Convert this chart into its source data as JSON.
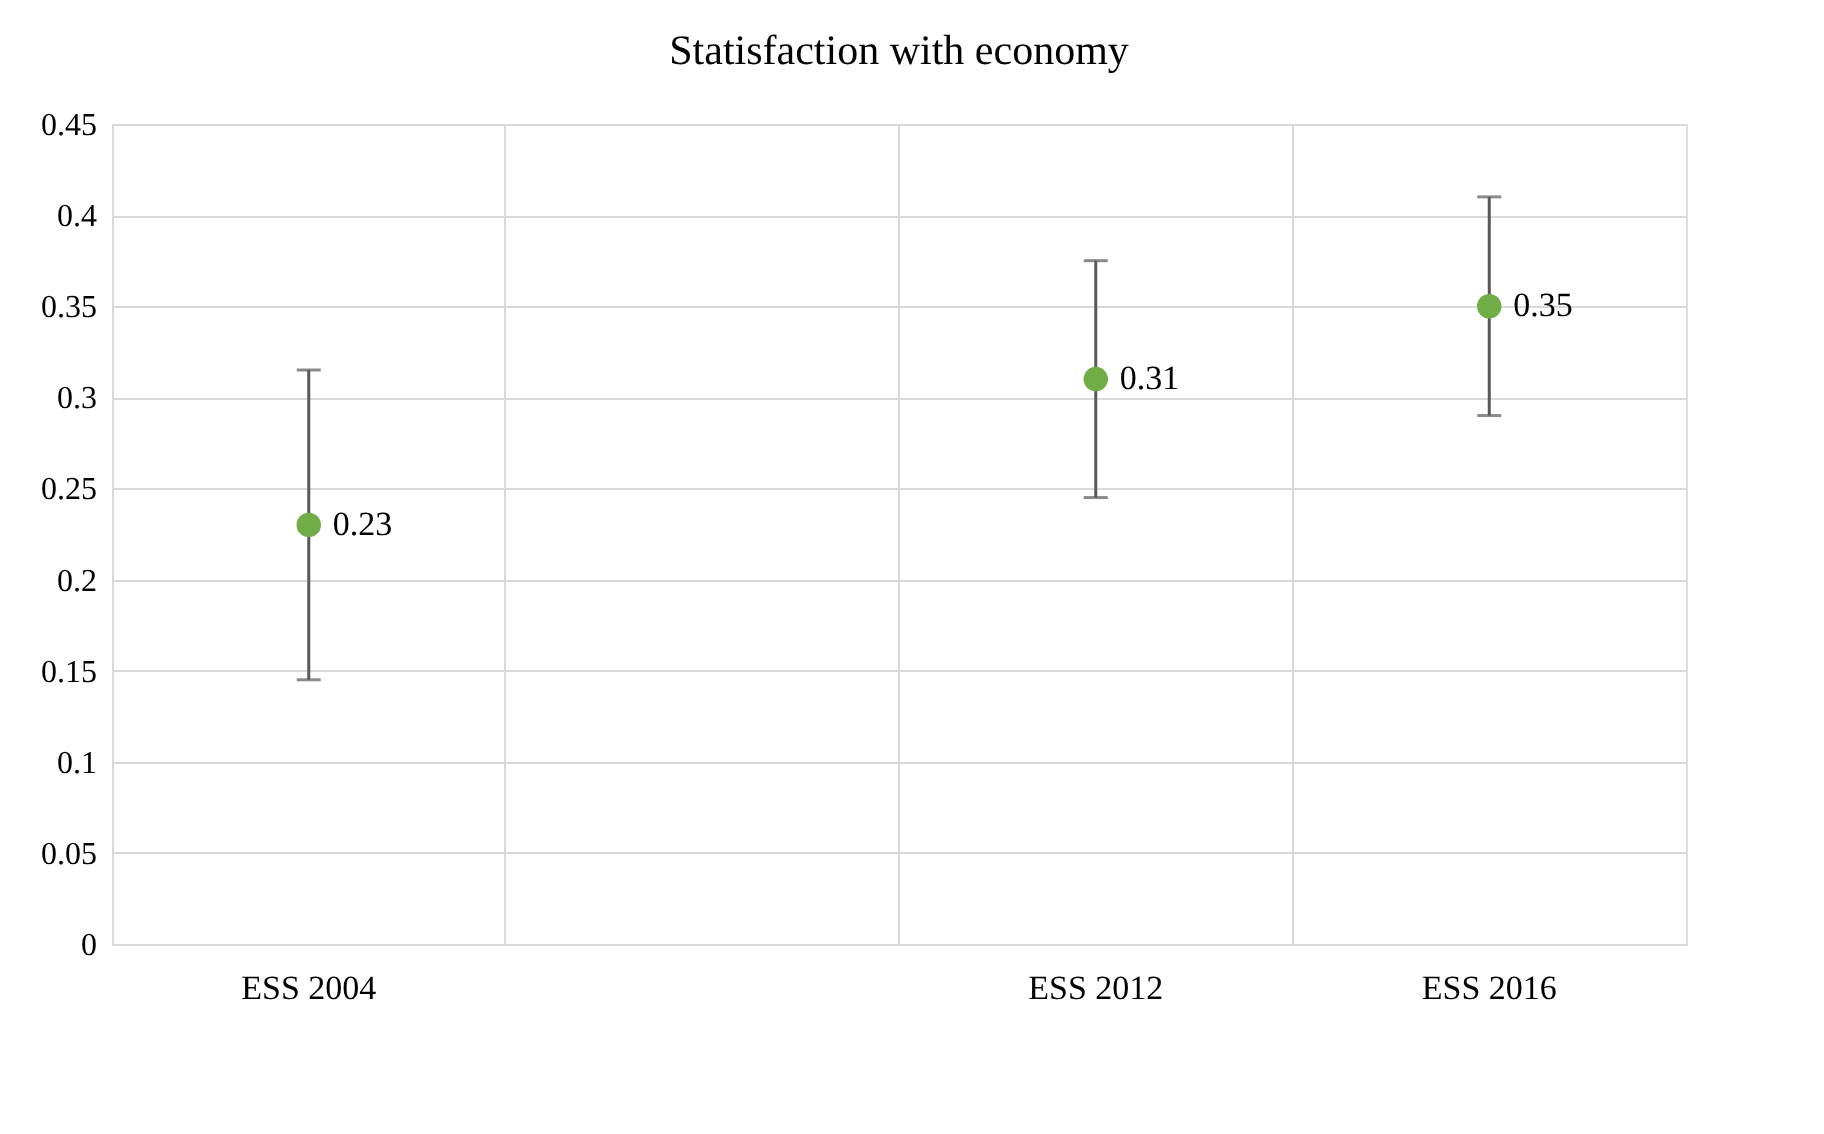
{
  "chart_data": {
    "type": "scatter",
    "title": "Statisfaction with economy",
    "categories": [
      "ESS 2004",
      null,
      "ESS 2012",
      "ESS 2016"
    ],
    "series": [
      {
        "color": "#70ad47",
        "values": [
          0.23,
          null,
          0.31,
          0.35
        ],
        "errors": [
          [
            0.145,
            0.315
          ],
          null,
          [
            0.245,
            0.375
          ],
          [
            0.29,
            0.41
          ]
        ]
      }
    ],
    "ylim": [
      0,
      0.45
    ],
    "yticks": [
      0,
      0.05,
      0.1,
      0.15,
      0.2,
      0.25,
      0.3,
      0.35,
      0.4,
      0.45
    ],
    "grid": true,
    "marker": "circle",
    "data_labels": true
  }
}
